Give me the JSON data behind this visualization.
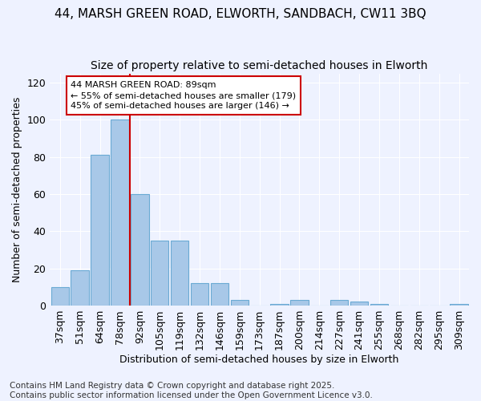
{
  "title_line1": "44, MARSH GREEN ROAD, ELWORTH, SANDBACH, CW11 3BQ",
  "title_line2": "Size of property relative to semi-detached houses in Elworth",
  "xlabel": "Distribution of semi-detached houses by size in Elworth",
  "ylabel": "Number of semi-detached properties",
  "categories": [
    "37sqm",
    "51sqm",
    "64sqm",
    "78sqm",
    "92sqm",
    "105sqm",
    "119sqm",
    "132sqm",
    "146sqm",
    "159sqm",
    "173sqm",
    "187sqm",
    "200sqm",
    "214sqm",
    "227sqm",
    "241sqm",
    "255sqm",
    "268sqm",
    "282sqm",
    "295sqm",
    "309sqm"
  ],
  "values": [
    10,
    19,
    81,
    100,
    60,
    35,
    35,
    12,
    12,
    3,
    0,
    1,
    3,
    0,
    3,
    2,
    1,
    0,
    0,
    0,
    1
  ],
  "bar_color": "#a8c8e8",
  "bar_edge_color": "#6aaad4",
  "vline_index": 4,
  "vline_color": "#cc0000",
  "annotation_text": "44 MARSH GREEN ROAD: 89sqm\n← 55% of semi-detached houses are smaller (179)\n45% of semi-detached houses are larger (146) →",
  "annotation_box_facecolor": "#ffffff",
  "annotation_box_edgecolor": "#cc0000",
  "ylim": [
    0,
    125
  ],
  "yticks": [
    0,
    20,
    40,
    60,
    80,
    100,
    120
  ],
  "background_color": "#eef2ff",
  "footer_text": "Contains HM Land Registry data © Crown copyright and database right 2025.\nContains public sector information licensed under the Open Government Licence v3.0.",
  "title_fontsize": 11,
  "subtitle_fontsize": 10,
  "axis_label_fontsize": 9,
  "tick_fontsize": 9,
  "annotation_fontsize": 8,
  "footer_fontsize": 7.5
}
